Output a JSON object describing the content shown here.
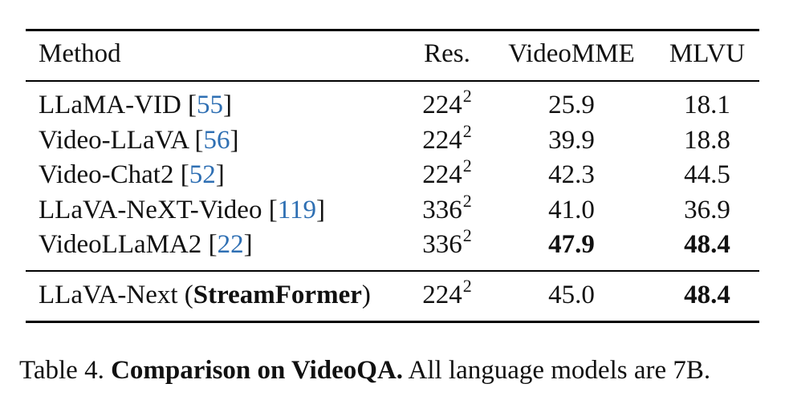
{
  "table": {
    "headers": {
      "method": "Method",
      "res": "Res.",
      "videomme": "VideoMME",
      "mlvu": "MLVU"
    },
    "rows": [
      {
        "method": "LLaMA-VID",
        "ref": "55",
        "res_base": "224",
        "res_exp": "2",
        "videomme": "25.9",
        "mlvu": "18.1",
        "videomme_bold": false,
        "mlvu_bold": false
      },
      {
        "method": "Video-LLaVA",
        "ref": "56",
        "res_base": "224",
        "res_exp": "2",
        "videomme": "39.9",
        "mlvu": "18.8",
        "videomme_bold": false,
        "mlvu_bold": false
      },
      {
        "method": "Video-Chat2",
        "ref": "52",
        "res_base": "224",
        "res_exp": "2",
        "videomme": "42.3",
        "mlvu": "44.5",
        "videomme_bold": false,
        "mlvu_bold": false
      },
      {
        "method": "LLaVA-NeXT-Video",
        "ref": "119",
        "res_base": "336",
        "res_exp": "2",
        "videomme": "41.0",
        "mlvu": "36.9",
        "videomme_bold": false,
        "mlvu_bold": false
      },
      {
        "method": "VideoLLaMA2",
        "ref": "22",
        "res_base": "336",
        "res_exp": "2",
        "videomme": "47.9",
        "mlvu": "48.4",
        "videomme_bold": true,
        "mlvu_bold": true
      }
    ],
    "final_row": {
      "method_prefix": "LLaVA-Next (",
      "method_bold": "StreamFormer",
      "method_suffix": ")",
      "res_base": "224",
      "res_exp": "2",
      "videomme": "45.0",
      "mlvu": "48.4",
      "mlvu_bold": true
    }
  },
  "caption": {
    "label": "Table 4.",
    "bold": "Comparison on VideoQA.",
    "text": "All language models are 7B."
  },
  "colors": {
    "reference_link": "#2e6fb3",
    "text": "#111111"
  }
}
